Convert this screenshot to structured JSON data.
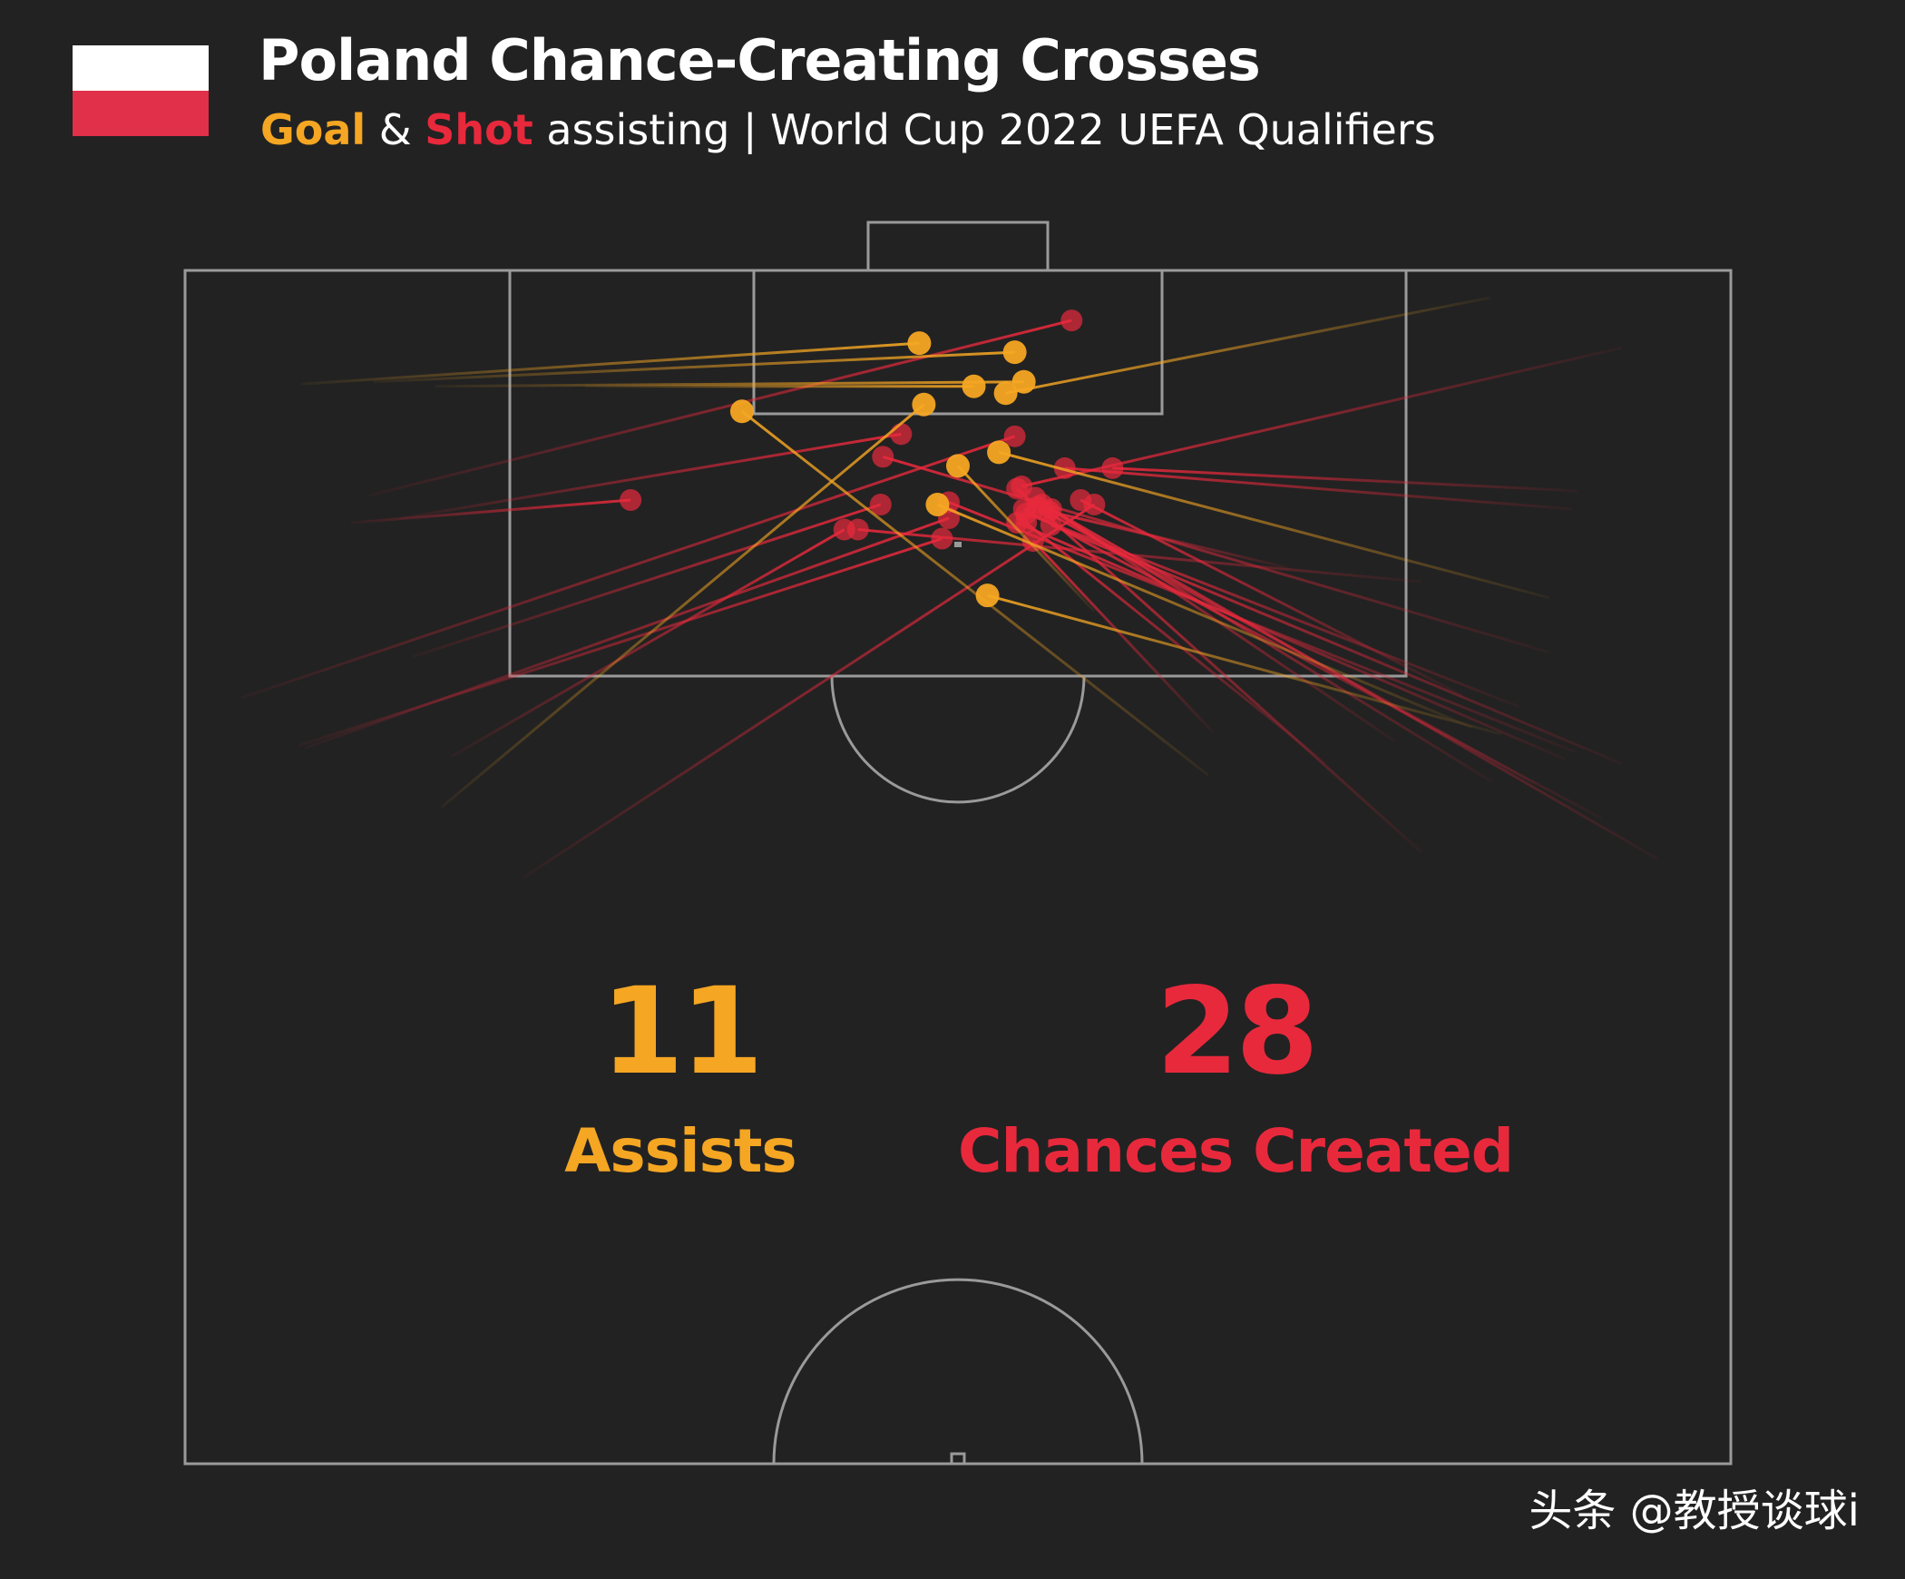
{
  "header": {
    "title": "Poland Chance-Creating Crosses",
    "subtitle_goal": "Goal",
    "subtitle_amp": " & ",
    "subtitle_shot": "Shot",
    "subtitle_rest": " assisting | World Cup 2022 UEFA Qualifiers"
  },
  "colors": {
    "background": "#222222",
    "assist": "#f5a623",
    "chance": "#e8293c",
    "pitch_lines": "#9a9a9a",
    "flag_white": "#ffffff",
    "flag_red": "#e0304a"
  },
  "stats": {
    "assists_value": "11",
    "assists_label": "Assists",
    "chances_value": "28",
    "chances_label": "Chances Created"
  },
  "watermark": "头条 @教授谈球i",
  "chart_data": {
    "type": "scatter",
    "title": "Poland Chance-Creating Crosses",
    "subtitle": "Goal & Shot assisting | World Cup 2022 UEFA Qualifiers",
    "pitch": {
      "width_m": 68,
      "length_m": 52.5
    },
    "series": [
      {
        "name": "Goal",
        "color": "#f5a623",
        "crosses": [
          {
            "start": [
              5.1,
              5.0
            ],
            "end": [
              32.3,
              3.2
            ]
          },
          {
            "start": [
              8.3,
              4.9
            ],
            "end": [
              36.5,
              3.6
            ]
          },
          {
            "start": [
              17.6,
              5.1
            ],
            "end": [
              34.7,
              5.1
            ]
          },
          {
            "start": [
              11.0,
              5.1
            ],
            "end": [
              36.9,
              4.9
            ]
          },
          {
            "start": [
              57.4,
              1.2
            ],
            "end": [
              36.1,
              5.4
            ]
          },
          {
            "start": [
              45.0,
              22.2
            ],
            "end": [
              24.5,
              6.2
            ]
          },
          {
            "start": [
              11.3,
              23.6
            ],
            "end": [
              32.5,
              5.9
            ]
          },
          {
            "start": [
              40.0,
              15.0
            ],
            "end": [
              34.0,
              8.6
            ]
          },
          {
            "start": [
              57.9,
              20.4
            ],
            "end": [
              35.3,
              14.3
            ]
          },
          {
            "start": [
              60.0,
              14.4
            ],
            "end": [
              35.8,
              8.0
            ]
          },
          {
            "start": [
              56.6,
              20.1
            ],
            "end": [
              33.1,
              10.3
            ]
          }
        ]
      },
      {
        "name": "Shot",
        "color": "#e8293c",
        "crosses": [
          {
            "start": [
              8.1,
              9.9
            ],
            "end": [
              39.0,
              2.2
            ]
          },
          {
            "start": [
              9.5,
              10.9
            ],
            "end": [
              31.5,
              7.2
            ]
          },
          {
            "start": [
              2.5,
              18.8
            ],
            "end": [
              36.5,
              7.3
            ]
          },
          {
            "start": [
              5.0,
              20.9
            ],
            "end": [
              33.3,
              11.8
            ]
          },
          {
            "start": [
              7.3,
              11.1
            ],
            "end": [
              19.6,
              10.1
            ]
          },
          {
            "start": [
              14.9,
              26.7
            ],
            "end": [
              40.0,
              10.3
            ]
          },
          {
            "start": [
              60.0,
              16.8
            ],
            "end": [
              30.7,
              8.2
            ]
          },
          {
            "start": [
              61.3,
              9.7
            ],
            "end": [
              40.8,
              8.7
            ]
          },
          {
            "start": [
              61.0,
              10.5
            ],
            "end": [
              38.7,
              8.7
            ]
          },
          {
            "start": [
              63.2,
              3.4
            ],
            "end": [
              36.8,
              9.5
            ]
          },
          {
            "start": [
              54.4,
              13.7
            ],
            "end": [
              29.6,
              11.4
            ]
          },
          {
            "start": [
              56.2,
              18.7
            ],
            "end": [
              39.4,
              10.1
            ]
          },
          {
            "start": [
              54.4,
              25.6
            ],
            "end": [
              36.6,
              9.6
            ]
          },
          {
            "start": [
              62.3,
              24.1
            ],
            "end": [
              36.9,
              10.5
            ]
          },
          {
            "start": [
              59.4,
              22.6
            ],
            "end": [
              37.5,
              10.4
            ]
          },
          {
            "start": [
              64.8,
              25.9
            ],
            "end": [
              38.1,
              10.5
            ]
          },
          {
            "start": [
              5.3,
              21.0
            ],
            "end": [
              33.6,
              10.9
            ]
          },
          {
            "start": [
              63.2,
              21.7
            ],
            "end": [
              38.1,
              11.2
            ]
          },
          {
            "start": [
              60.7,
              21.5
            ],
            "end": [
              36.6,
              11.1
            ]
          },
          {
            "start": [
              11.7,
              21.4
            ],
            "end": [
              29.0,
              11.4
            ]
          },
          {
            "start": [
              10.0,
              17.0
            ],
            "end": [
              30.6,
              10.3
            ]
          },
          {
            "start": [
              58.7,
              19.2
            ],
            "end": [
              37.0,
              10.7
            ]
          },
          {
            "start": [
              61.2,
              21.2
            ],
            "end": [
              33.6,
              10.2
            ]
          },
          {
            "start": [
              57.5,
              22.5
            ],
            "end": [
              37.7,
              10.3
            ]
          },
          {
            "start": [
              50.2,
              21.7
            ],
            "end": [
              37.0,
              11.1
            ]
          },
          {
            "start": [
              48.6,
              13.1
            ],
            "end": [
              38.0,
              10.6
            ]
          },
          {
            "start": [
              53.2,
              20.7
            ],
            "end": [
              37.4,
              10.0
            ]
          },
          {
            "start": [
              45.2,
              20.3
            ],
            "end": [
              37.3,
              11.9
            ]
          }
        ]
      }
    ]
  }
}
